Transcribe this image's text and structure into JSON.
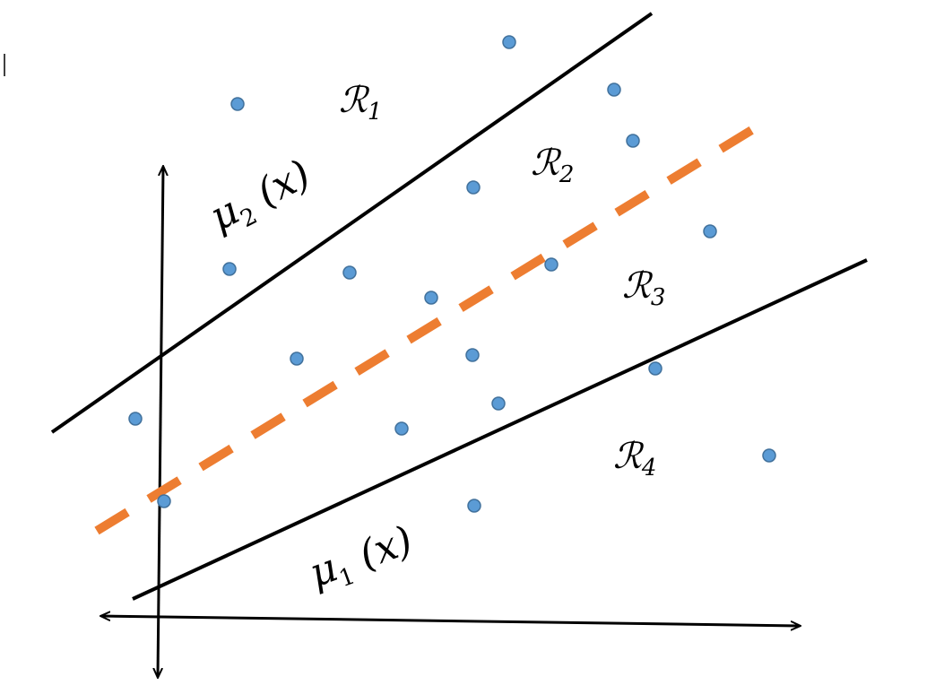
{
  "regions": [
    {
      "symbol": "ℛ",
      "subscript": "1"
    },
    {
      "symbol": "ℛ",
      "subscript": "2"
    },
    {
      "symbol": "ℛ",
      "subscript": "3"
    },
    {
      "symbol": "ℛ",
      "subscript": "4"
    }
  ],
  "functions": [
    {
      "symbol": "μ",
      "subscript": "2",
      "argument": "(x)"
    },
    {
      "symbol": "μ",
      "subscript": "1",
      "argument": "(x)"
    }
  ]
}
